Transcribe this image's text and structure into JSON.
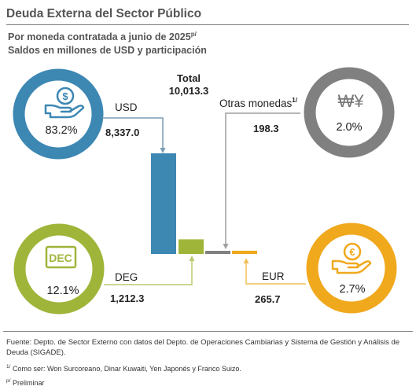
{
  "title": "Deuda Externa del Sector Público",
  "subtitle": "Por moneda contratada a junio de 2025",
  "subtitle_sup": "p/",
  "subtitle2": "Saldos en millones de USD y participación",
  "total_label": "Total",
  "total_value": "10,013.3",
  "footer": {
    "source": "Fuente: Depto. de Sector Externo con datos del Depto. de Operaciones Cambiarias y Sistema de Gestión y Análisis de Deuda (SIGADE).",
    "note_sup": "1/",
    "note": "Como ser: Won Surcoreano, Dinar Kuwaiti, Yen Japonés y Franco Suizo.",
    "prelim_sup": "p/",
    "prelim": "Preliminar"
  },
  "chart_data": {
    "type": "bar",
    "categories": [
      "USD",
      "DEG",
      "Otras monedas",
      "EUR"
    ],
    "category_sup": [
      "",
      "",
      "1/",
      ""
    ],
    "values": [
      8337.0,
      1212.3,
      198.3,
      265.7
    ],
    "value_labels": [
      "8,337.0",
      "1,212.3",
      "198.3",
      "265.7"
    ],
    "shares": [
      "83.2%",
      "12.1%",
      "2.0%",
      "2.7%"
    ],
    "share_values": [
      83.2,
      12.1,
      2.0,
      2.7
    ],
    "total": 10013.3,
    "colors": [
      "#3d87b3",
      "#9fb53a",
      "#808080",
      "#f0a81c"
    ],
    "icons": [
      "dollar-hand-icon",
      "dec-badge-icon",
      "won-yen-icon",
      "euro-hand-icon"
    ],
    "icon_text": [
      "$",
      "DEC",
      "₩¥",
      "€"
    ],
    "grid": false,
    "legend": "none"
  }
}
